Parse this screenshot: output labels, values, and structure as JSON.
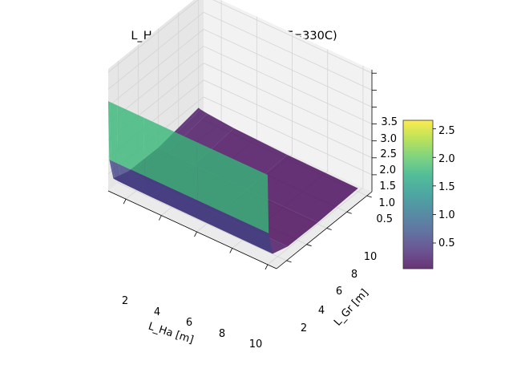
{
  "chart_data": {
    "type": "surface3d",
    "title": "L_Ha vs L_Gr vs heat flux (T=330C)",
    "xlabel": "L_Ha [m]",
    "ylabel": "L_Gr [m]",
    "zlabel": "",
    "x_ticks": [
      "2",
      "4",
      "6",
      "8",
      "10"
    ],
    "y_ticks": [
      "2",
      "4",
      "6",
      "8",
      "10"
    ],
    "z_ticks": [
      "0.5",
      "1.0",
      "1.5",
      "2.0",
      "2.5",
      "3.0",
      "3.5"
    ],
    "xlim": [
      1,
      10.5
    ],
    "ylim": [
      1,
      10.5
    ],
    "zlim": [
      0,
      3.6
    ],
    "grid": true,
    "colormap": "viridis",
    "surface_alpha": 0.8,
    "colorbar": {
      "ticks": [
        "0.5",
        "1.0",
        "1.5",
        "2.0",
        "2.5"
      ],
      "min": 0.05,
      "max": 2.65
    },
    "surface_samples": {
      "L_Ha": [
        1.0,
        1.1,
        1.5,
        3.0,
        6.0,
        10.0
      ],
      "L_Gr": [
        1.0,
        1.1,
        1.5,
        3.0,
        6.0,
        10.0
      ],
      "heat_flux": [
        [
          2.65,
          0.9,
          0.25,
          0.1,
          0.08,
          0.3
        ],
        [
          2.65,
          0.9,
          0.24,
          0.09,
          0.07,
          0.28
        ],
        [
          2.65,
          0.9,
          0.23,
          0.08,
          0.06,
          0.25
        ],
        [
          2.65,
          0.9,
          0.22,
          0.07,
          0.05,
          0.18
        ],
        [
          2.65,
          0.9,
          0.21,
          0.06,
          0.05,
          0.12
        ],
        [
          2.65,
          0.9,
          0.2,
          0.06,
          0.05,
          0.1
        ]
      ]
    },
    "colors": {
      "pane": "#f2f2f2",
      "pane_side": "#e6e6e6",
      "pane_floor": "#ebebeb",
      "grid": "#d4d4d4",
      "axis": "#000000"
    }
  }
}
